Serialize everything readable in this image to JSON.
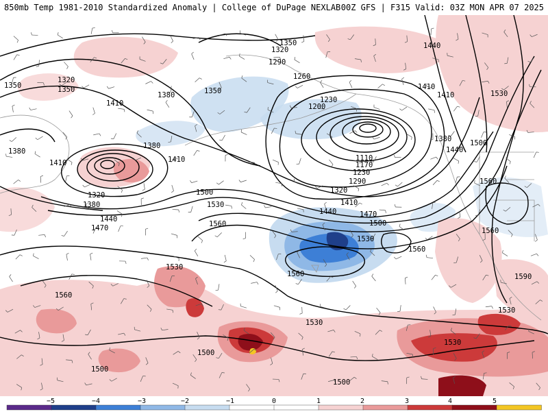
{
  "header": {
    "left_title": "850mb Temp 1981-2010 Standardized Anomaly | College of DuPage NEXLAB",
    "right_title": "00Z GFS | F315 Valid: 03Z MON APR 07 2025"
  },
  "map": {
    "contour_labels": [
      "1350",
      "1320",
      "1290",
      "1260",
      "1230",
      "1200",
      "1110",
      "1170",
      "1230",
      "1290",
      "1320",
      "1410",
      "1440",
      "1470",
      "1500",
      "1530",
      "1560",
      "1560",
      "1530",
      "1500",
      "1470",
      "1440",
      "1410",
      "1380",
      "1350",
      "1320",
      "1380",
      "1410",
      "1380",
      "1320",
      "1350",
      "1410",
      "1380",
      "1350",
      "1440",
      "1410",
      "1500",
      "1530",
      "1560",
      "1560",
      "1560",
      "1590",
      "1530",
      "1530",
      "1530",
      "1500",
      "1500",
      "1500",
      "1530",
      "1560",
      "1410",
      "1440",
      "1380"
    ],
    "colors": {
      "land_outline": "#9a9a9a",
      "contour": "#000000",
      "neg_light": "#c7dcf0",
      "neg_mid": "#8fb8e6",
      "neg_strong": "#3d7fd6",
      "neg_deep": "#1f3f8a",
      "pos_light": "#f6d2d2",
      "pos_mid": "#e99a9a",
      "pos_strong": "#cc3a3a",
      "pos_deep": "#8e0f1a",
      "extreme": "#f3c623"
    }
  },
  "colorbar": {
    "ticks": [
      "−5",
      "−4",
      "−3",
      "−2",
      "−1",
      "0",
      "1",
      "2",
      "3",
      "4",
      "5"
    ],
    "colors": [
      "#5a2a8a",
      "#1f3f8a",
      "#3d7fd6",
      "#8fb8e6",
      "#c7dcf0",
      "#ffffff",
      "#ffffff",
      "#f6d2d2",
      "#e99a9a",
      "#cc3a3a",
      "#8e0f1a",
      "#f3c623"
    ]
  }
}
